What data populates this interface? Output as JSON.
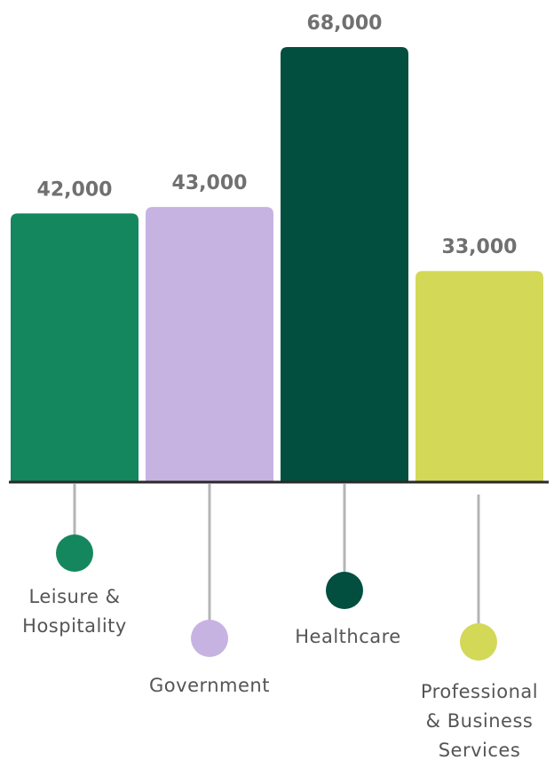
{
  "chart_data": {
    "type": "bar",
    "categories": [
      "Leisure & Hospitality",
      "Government",
      "Healthcare",
      "Professional & Business Services"
    ],
    "values": [
      42000,
      43000,
      68000,
      33000
    ],
    "value_labels": [
      "42,000",
      "43,000",
      "68,000",
      "33,000"
    ],
    "category_label_lines": [
      [
        "Leisure &",
        "Hospitality"
      ],
      [
        "Government"
      ],
      [
        "Healthcare"
      ],
      [
        "Professional",
        "& Business",
        "Services"
      ]
    ],
    "colors": [
      "#15875e",
      "#c6b3e2",
      "#024f3f",
      "#d3d857"
    ],
    "ylim": [
      0,
      68000
    ],
    "title": "",
    "xlabel": "",
    "ylabel": "",
    "grid": false,
    "legend": "none"
  }
}
